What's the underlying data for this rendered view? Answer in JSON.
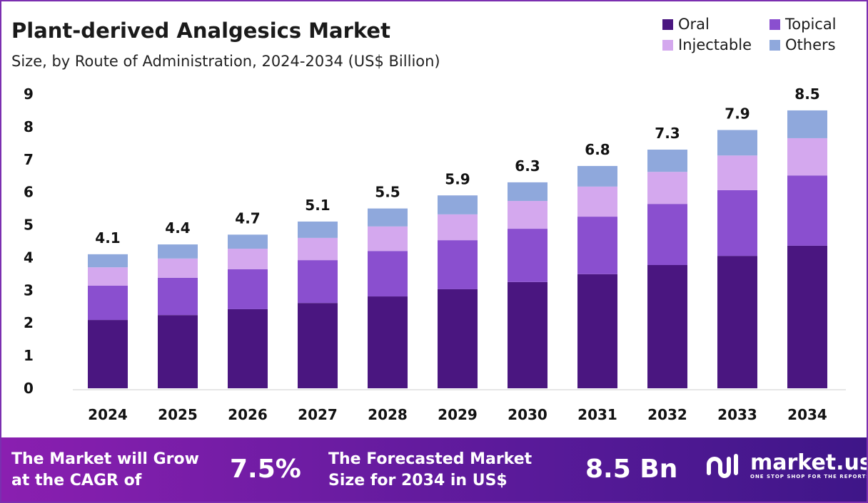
{
  "chart_data": {
    "type": "bar",
    "stacked": true,
    "title": "Plant-derived Analgesics Market",
    "subtitle": "Size, by Route of Administration, 2024-2034 (US$ Billion)",
    "categories": [
      "2024",
      "2025",
      "2026",
      "2027",
      "2028",
      "2029",
      "2030",
      "2031",
      "2032",
      "2033",
      "2034"
    ],
    "series": [
      {
        "name": "Oral",
        "color": "#4a1680",
        "values": [
          2.09,
          2.24,
          2.42,
          2.61,
          2.81,
          3.03,
          3.25,
          3.49,
          3.77,
          4.05,
          4.36
        ]
      },
      {
        "name": "Topical",
        "color": "#8a4fcf",
        "values": [
          1.05,
          1.14,
          1.22,
          1.31,
          1.39,
          1.5,
          1.63,
          1.76,
          1.87,
          2.01,
          2.15
        ]
      },
      {
        "name": "Injectable",
        "color": "#d4a8ee",
        "values": [
          0.56,
          0.59,
          0.63,
          0.68,
          0.75,
          0.79,
          0.85,
          0.92,
          0.98,
          1.06,
          1.14
        ]
      },
      {
        "name": "Others",
        "color": "#8fa8dc",
        "values": [
          0.4,
          0.43,
          0.43,
          0.5,
          0.55,
          0.58,
          0.57,
          0.63,
          0.68,
          0.78,
          0.85
        ]
      }
    ],
    "totals": [
      "4.1",
      "4.4",
      "4.7",
      "5.1",
      "5.5",
      "5.9",
      "6.3",
      "6.8",
      "7.3",
      "7.9",
      "8.5"
    ],
    "yticks": [
      "0",
      "1",
      "2",
      "3",
      "4",
      "5",
      "6",
      "7",
      "8",
      "9"
    ],
    "ylim": [
      0,
      9
    ],
    "grid": false,
    "legend": "top-right"
  },
  "footer": {
    "cagr_label": "The Market will Grow at the CAGR of",
    "cagr_value": "7.5%",
    "forecast_label": "The Forecasted Market Size for 2034 in US$",
    "forecast_value": "8.5 Bn",
    "logo_name": "market.us",
    "logo_tagline": "ONE STOP SHOP FOR THE REPORTS"
  }
}
